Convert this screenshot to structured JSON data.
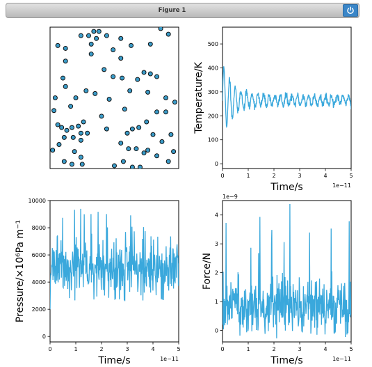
{
  "window": {
    "title": "Figure 1",
    "power_icon": "power-icon",
    "accent": "#3a86c8"
  },
  "chart_data": [
    {
      "type": "scatter",
      "panel": "particles",
      "axes_visible": false,
      "marker_color": "#3a9bc8",
      "marker_edge": "#111111",
      "xlim": [
        0,
        1
      ],
      "ylim": [
        0,
        1
      ],
      "points": [
        [
          0.06,
          0.87
        ],
        [
          0.12,
          0.85
        ],
        [
          0.24,
          0.94
        ],
        [
          0.3,
          0.94
        ],
        [
          0.34,
          0.97
        ],
        [
          0.38,
          0.97
        ],
        [
          0.36,
          0.92
        ],
        [
          0.44,
          0.94
        ],
        [
          0.49,
          0.84
        ],
        [
          0.55,
          0.92
        ],
        [
          0.63,
          0.87
        ],
        [
          0.78,
          0.88
        ],
        [
          0.86,
          0.99
        ],
        [
          0.92,
          0.95
        ],
        [
          0.32,
          0.88
        ],
        [
          0.32,
          0.81
        ],
        [
          0.55,
          0.78
        ],
        [
          0.49,
          0.65
        ],
        [
          0.42,
          0.7
        ],
        [
          0.12,
          0.76
        ],
        [
          0.1,
          0.64
        ],
        [
          0.12,
          0.58
        ],
        [
          0.28,
          0.55
        ],
        [
          0.35,
          0.53
        ],
        [
          0.04,
          0.5
        ],
        [
          0.2,
          0.5
        ],
        [
          0.16,
          0.44
        ],
        [
          0.56,
          0.64
        ],
        [
          0.62,
          0.55
        ],
        [
          0.68,
          0.63
        ],
        [
          0.73,
          0.68
        ],
        [
          0.78,
          0.67
        ],
        [
          0.83,
          0.65
        ],
        [
          0.76,
          0.54
        ],
        [
          0.58,
          0.42
        ],
        [
          0.46,
          0.49
        ],
        [
          0.4,
          0.37
        ],
        [
          0.44,
          0.28
        ],
        [
          0.9,
          0.5
        ],
        [
          0.97,
          0.47
        ],
        [
          0.03,
          0.41
        ],
        [
          0.9,
          0.4
        ],
        [
          0.83,
          0.4
        ],
        [
          0.75,
          0.33
        ],
        [
          0.69,
          0.29
        ],
        [
          0.64,
          0.28
        ],
        [
          0.6,
          0.25
        ],
        [
          0.55,
          0.18
        ],
        [
          0.61,
          0.14
        ],
        [
          0.67,
          0.14
        ],
        [
          0.73,
          0.11
        ],
        [
          0.76,
          0.13
        ],
        [
          0.8,
          0.24
        ],
        [
          0.94,
          0.24
        ],
        [
          0.02,
          0.13
        ],
        [
          0.06,
          0.31
        ],
        [
          0.09,
          0.29
        ],
        [
          0.13,
          0.27
        ],
        [
          0.17,
          0.29
        ],
        [
          0.22,
          0.3
        ],
        [
          0.24,
          0.25
        ],
        [
          0.29,
          0.25
        ],
        [
          0.26,
          0.33
        ],
        [
          0.24,
          0.2
        ],
        [
          0.18,
          0.22
        ],
        [
          0.11,
          0.22
        ],
        [
          0.07,
          0.17
        ],
        [
          0.19,
          0.12
        ],
        [
          0.25,
          0.03
        ],
        [
          0.24,
          0.08
        ],
        [
          0.11,
          0.05
        ],
        [
          0.17,
          0.03
        ],
        [
          0.5,
          0.02
        ],
        [
          0.57,
          0.05
        ],
        [
          0.64,
          0.01
        ],
        [
          0.7,
          0.01
        ],
        [
          0.92,
          0.05
        ],
        [
          0.96,
          0.12
        ],
        [
          0.83,
          0.09
        ],
        [
          0.87,
          0.19
        ]
      ]
    },
    {
      "type": "line",
      "panel": "temperature",
      "ylabel": "Temperature/K",
      "xlabel": "Time/s",
      "x_offset_text": "1e−11",
      "xlim": [
        0,
        5
      ],
      "ylim": [
        -20,
        570
      ],
      "xticks": [
        0,
        1,
        2,
        3,
        4,
        5
      ],
      "xtick_labels": [
        "0",
        "1",
        "2",
        "3",
        "4",
        "5"
      ],
      "yticks": [
        0,
        100,
        200,
        300,
        400,
        500
      ],
      "ytick_labels": [
        "0",
        "100",
        "200",
        "300",
        "400",
        "500"
      ],
      "color": "#3aa8dc",
      "signal": {
        "kind": "damped_oscillation",
        "mean": 265,
        "initial_amplitude": 160,
        "decay": 0.4,
        "period": 0.22,
        "floor_amplitude": 20,
        "noise": 8,
        "n": 500,
        "seed": 11
      }
    },
    {
      "type": "line",
      "panel": "pressure",
      "ylabel": "Pressure/×10⁶Pa m⁻¹",
      "xlabel": "Time/s",
      "x_offset_text": "1e−11",
      "xlim": [
        0,
        5
      ],
      "ylim": [
        -400,
        10000
      ],
      "xticks": [
        0,
        1,
        2,
        3,
        4,
        5
      ],
      "xtick_labels": [
        "0",
        "1",
        "2",
        "3",
        "4",
        "5"
      ],
      "yticks": [
        0,
        2000,
        4000,
        6000,
        8000,
        10000
      ],
      "ytick_labels": [
        "0",
        "2000",
        "4000",
        "6000",
        "8000",
        "10000"
      ],
      "color": "#3aa8dc",
      "signal": {
        "kind": "noise",
        "start": 2000,
        "mean": 4900,
        "sd": 1000,
        "spike_prob": 0.06,
        "spike_max": 9400,
        "min": 2600,
        "n": 400,
        "seed": 23
      }
    },
    {
      "type": "line",
      "panel": "force",
      "ylabel": "Force/N",
      "xlabel": "Time/s",
      "x_offset_text": "1e−11",
      "y_offset_text": "1e−9",
      "xlim": [
        0,
        5
      ],
      "ylim": [
        -0.4,
        4.5
      ],
      "xticks": [
        0,
        1,
        2,
        3,
        4,
        5
      ],
      "xtick_labels": [
        "0",
        "1",
        "2",
        "3",
        "4",
        "5"
      ],
      "yticks": [
        0,
        1,
        2,
        3,
        4
      ],
      "ytick_labels": [
        "0",
        "1",
        "2",
        "3",
        "4"
      ],
      "color": "#3aa8dc",
      "signal": {
        "kind": "noise",
        "start": 0.2,
        "mean": 0.8,
        "sd": 0.5,
        "spike_prob": 0.06,
        "spike_max": 4.4,
        "min": -0.3,
        "n": 400,
        "seed": 37
      }
    }
  ]
}
